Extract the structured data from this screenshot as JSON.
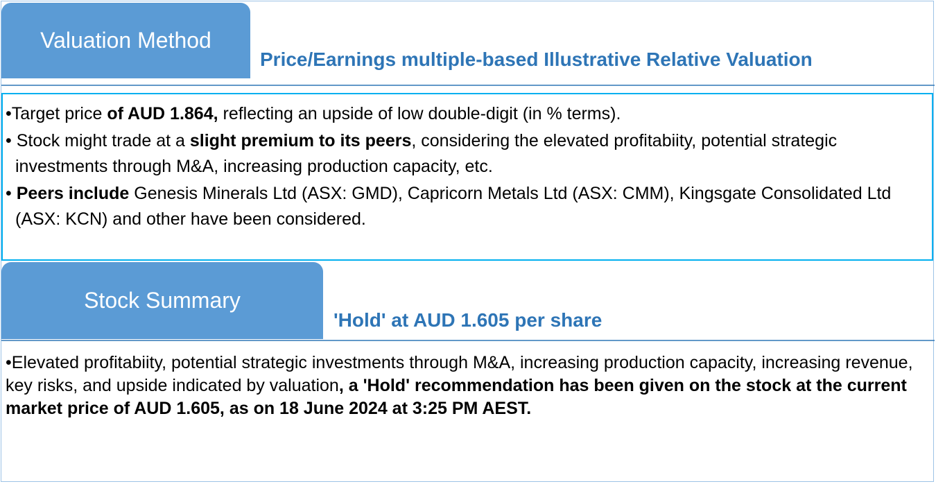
{
  "valuation": {
    "tab_label": "Valuation Method",
    "subtitle": "Price/Earnings multiple-based Illustrative Relative Valuation",
    "bullets": [
      {
        "bullet": "•",
        "pre": "Target price ",
        "bold": "of AUD 1.864,",
        "post": " reflecting an upside of low double-digit (in % terms)."
      },
      {
        "bullet": "•",
        "pre": " Stock might trade at a ",
        "bold": "slight premium to its peers",
        "post": ", considering the elevated profitabiity, potential strategic investments through M&A, increasing production capacity, etc."
      },
      {
        "bullet": "•",
        "pre": " ",
        "bold": "Peers include",
        "post": " Genesis Minerals Ltd (ASX: GMD), Capricorn Metals Ltd (ASX: CMM), Kingsgate Consolidated Ltd (ASX: KCN) and other have been considered."
      }
    ]
  },
  "summary": {
    "tab_label": "Stock Summary",
    "subtitle": "'Hold' at AUD 1.605 per share",
    "paragraph": {
      "bullet": "•",
      "pre": "Elevated profitabiity, potential strategic investments through M&A, increasing production capacity, increasing revenue, key risks, and upside indicated by valuation",
      "bold": ", a 'Hold' recommendation has been given on the stock at the current market price of AUD 1.605, as on 18 June 2024 at 3:25 PM AEST."
    }
  },
  "colors": {
    "tab_fill": "#5b9bd5",
    "subtitle_text": "#2e75b6",
    "box_border": "#00b0f0"
  }
}
